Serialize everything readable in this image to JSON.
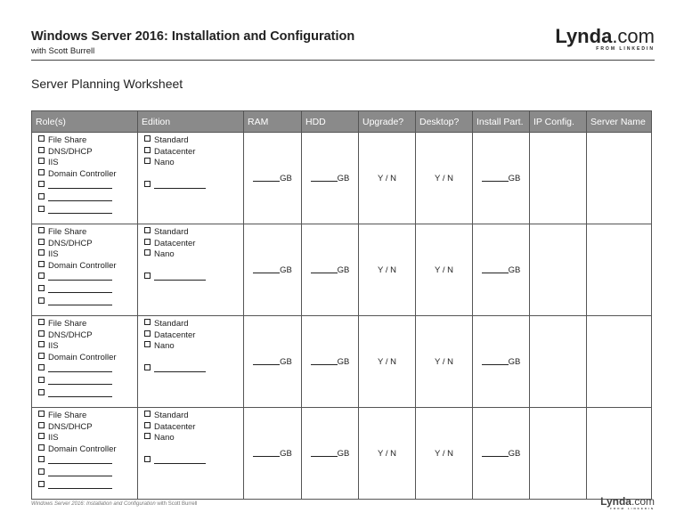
{
  "header": {
    "title": "Windows Server 2016: Installation and Configuration",
    "subtitle": "with Scott Burrell",
    "logo": {
      "name": "Lynda",
      "suffix": ".com",
      "tag": "FROM LINKEDIN"
    }
  },
  "worksheet_title": "Server Planning Worksheet",
  "table": {
    "columns": [
      "Role(s)",
      "Edition",
      "RAM",
      "HDD",
      "Upgrade?",
      "Desktop?",
      "Install Part.",
      "IP Config.",
      "Server Name"
    ],
    "rows": [
      {
        "roles": [
          "File Share",
          "DNS/DHCP",
          "IIS",
          "Domain Controller"
        ],
        "editions": [
          "Standard",
          "Datacenter",
          "Nano"
        ],
        "ram": "GB",
        "hdd": "GB",
        "upgrade": "Y / N",
        "desktop": "Y / N",
        "install": "GB"
      },
      {
        "roles": [
          "File Share",
          "DNS/DHCP",
          "IIS",
          "Domain Controller"
        ],
        "editions": [
          "Standard",
          "Datacenter",
          "Nano"
        ],
        "ram": "GB",
        "hdd": "GB",
        "upgrade": "Y / N",
        "desktop": "Y / N",
        "install": "GB"
      },
      {
        "roles": [
          "File Share",
          "DNS/DHCP",
          "IIS",
          "Domain Controller"
        ],
        "editions": [
          "Standard",
          "Datacenter",
          "Nano"
        ],
        "ram": "GB",
        "hdd": "GB",
        "upgrade": "Y / N",
        "desktop": "Y / N",
        "install": "GB"
      },
      {
        "roles": [
          "File Share",
          "DNS/DHCP",
          "IIS",
          "Domain Controller"
        ],
        "editions": [
          "Standard",
          "Datacenter",
          "Nano"
        ],
        "ram": "GB",
        "hdd": "GB",
        "upgrade": "Y / N",
        "desktop": "Y / N",
        "install": "GB"
      }
    ]
  },
  "footer": {
    "course": "Windows Server 2016: Installation and Configuration",
    "author": "with Scott Burrell",
    "logo": {
      "name": "Lynda",
      "suffix": ".com",
      "tag": "FROM LINKEDIN"
    }
  }
}
